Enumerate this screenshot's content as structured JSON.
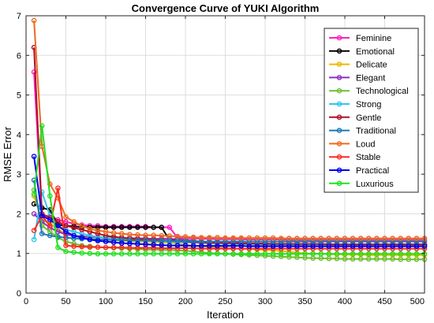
{
  "chart_data": {
    "type": "line",
    "title": "Convergence Curve of YUKI Algorithm",
    "xlabel": "Iteration",
    "ylabel": "RMSE Error",
    "xlim": [
      0,
      500
    ],
    "ylim": [
      0,
      7
    ],
    "xticks": [
      0,
      50,
      100,
      150,
      200,
      250,
      300,
      350,
      400,
      450,
      500
    ],
    "yticks": [
      0,
      1,
      2,
      3,
      4,
      5,
      6,
      7
    ],
    "grid": true,
    "legend_position": "top-right",
    "x": [
      10,
      20,
      30,
      40,
      50,
      60,
      70,
      80,
      90,
      100,
      110,
      120,
      130,
      140,
      150,
      160,
      170,
      180,
      190,
      200,
      210,
      220,
      230,
      240,
      250,
      260,
      270,
      280,
      290,
      300,
      310,
      320,
      330,
      340,
      350,
      360,
      370,
      380,
      390,
      400,
      410,
      420,
      430,
      440,
      450,
      460,
      470,
      480,
      490,
      500
    ],
    "series": [
      {
        "name": "Feminine",
        "color": "#ff1fbf",
        "values": [
          5.58,
          1.95,
          1.95,
          1.85,
          1.8,
          1.75,
          1.72,
          1.7,
          1.7,
          1.68,
          1.68,
          1.68,
          1.68,
          1.68,
          1.68,
          1.66,
          1.66,
          1.66,
          1.4,
          1.38,
          1.38,
          1.37,
          1.37,
          1.36,
          1.36,
          1.36,
          1.36,
          1.35,
          1.35,
          1.35,
          1.35,
          1.35,
          1.34,
          1.34,
          1.34,
          1.34,
          1.34,
          1.34,
          1.34,
          1.34,
          1.34,
          1.34,
          1.34,
          1.34,
          1.34,
          1.34,
          1.34,
          1.34,
          1.34,
          1.34
        ]
      },
      {
        "name": "Emotional",
        "color": "#000000",
        "values": [
          2.25,
          2.15,
          2.1,
          1.72,
          1.7,
          1.68,
          1.67,
          1.66,
          1.66,
          1.66,
          1.66,
          1.66,
          1.66,
          1.66,
          1.66,
          1.66,
          1.66,
          1.34,
          1.33,
          1.3,
          1.28,
          1.28,
          1.27,
          1.27,
          1.26,
          1.26,
          1.26,
          1.25,
          1.25,
          1.25,
          1.24,
          1.24,
          1.24,
          1.23,
          1.23,
          1.23,
          1.23,
          1.23,
          1.22,
          1.22,
          1.22,
          1.22,
          1.22,
          1.22,
          1.21,
          1.21,
          1.21,
          1.21,
          1.21,
          1.21
        ]
      },
      {
        "name": "Delicate",
        "color": "#f2b600",
        "values": [
          2.45,
          1.85,
          1.75,
          1.6,
          1.5,
          1.45,
          1.4,
          1.38,
          1.36,
          1.34,
          1.33,
          1.32,
          1.31,
          1.3,
          1.3,
          1.29,
          1.28,
          1.27,
          1.25,
          1.22,
          1.2,
          1.18,
          1.16,
          1.15,
          1.14,
          1.13,
          1.12,
          1.11,
          1.1,
          1.09,
          1.08,
          1.06,
          1.04,
          1.02,
          1.0,
          1.0,
          0.99,
          0.98,
          0.98,
          0.97,
          0.97,
          0.97,
          0.96,
          0.96,
          0.96,
          0.96,
          0.96,
          0.96,
          0.96,
          0.96
        ]
      },
      {
        "name": "Elegant",
        "color": "#8e2fbf",
        "values": [
          2.0,
          1.8,
          1.65,
          1.55,
          1.48,
          1.45,
          1.43,
          1.42,
          1.41,
          1.4,
          1.4,
          1.39,
          1.39,
          1.38,
          1.38,
          1.37,
          1.37,
          1.37,
          1.36,
          1.34,
          1.32,
          1.3,
          1.28,
          1.27,
          1.26,
          1.25,
          1.24,
          1.23,
          1.22,
          1.22,
          1.21,
          1.21,
          1.2,
          1.2,
          1.2,
          1.2,
          1.2,
          1.19,
          1.19,
          1.19,
          1.19,
          1.19,
          1.19,
          1.19,
          1.19,
          1.19,
          1.19,
          1.19,
          1.19,
          1.19
        ]
      },
      {
        "name": "Technological",
        "color": "#6fbf2f",
        "values": [
          2.6,
          1.7,
          1.55,
          1.4,
          1.3,
          1.25,
          1.2,
          1.18,
          1.16,
          1.15,
          1.14,
          1.13,
          1.12,
          1.11,
          1.1,
          1.1,
          1.09,
          1.09,
          1.08,
          1.07,
          1.05,
          1.03,
          1.01,
          1.0,
          0.99,
          0.98,
          0.97,
          0.96,
          0.95,
          0.94,
          0.93,
          0.92,
          0.91,
          0.9,
          0.89,
          0.88,
          0.88,
          0.87,
          0.87,
          0.86,
          0.86,
          0.86,
          0.86,
          0.86,
          0.86,
          0.86,
          0.85,
          0.85,
          0.85,
          0.85
        ]
      },
      {
        "name": "Strong",
        "color": "#33c6ec",
        "values": [
          1.35,
          2.55,
          1.95,
          1.7,
          1.6,
          1.55,
          1.5,
          1.45,
          1.42,
          1.4,
          1.38,
          1.36,
          1.35,
          1.34,
          1.33,
          1.32,
          1.31,
          1.3,
          1.29,
          1.28,
          1.27,
          1.26,
          1.25,
          1.25,
          1.24,
          1.24,
          1.23,
          1.23,
          1.23,
          1.22,
          1.22,
          1.22,
          1.22,
          1.21,
          1.21,
          1.21,
          1.21,
          1.21,
          1.21,
          1.21,
          1.21,
          1.21,
          1.21,
          1.21,
          1.21,
          1.21,
          1.21,
          1.21,
          1.21,
          1.21
        ]
      },
      {
        "name": "Gentle",
        "color": "#b30f26",
        "values": [
          6.2,
          2.0,
          1.9,
          1.8,
          1.7,
          1.65,
          1.6,
          1.55,
          1.5,
          1.45,
          1.42,
          1.4,
          1.38,
          1.36,
          1.35,
          1.34,
          1.33,
          1.32,
          1.31,
          1.3,
          1.29,
          1.28,
          1.27,
          1.27,
          1.26,
          1.26,
          1.25,
          1.25,
          1.25,
          1.24,
          1.24,
          1.24,
          1.24,
          1.24,
          1.24,
          1.24,
          1.24,
          1.23,
          1.23,
          1.23,
          1.23,
          1.23,
          1.23,
          1.23,
          1.23,
          1.23,
          1.23,
          1.23,
          1.23,
          1.23
        ]
      },
      {
        "name": "Traditional",
        "color": "#1f77b4",
        "values": [
          2.85,
          1.5,
          1.45,
          1.42,
          1.4,
          1.38,
          1.37,
          1.36,
          1.35,
          1.35,
          1.34,
          1.34,
          1.33,
          1.33,
          1.33,
          1.32,
          1.32,
          1.32,
          1.31,
          1.31,
          1.31,
          1.3,
          1.3,
          1.3,
          1.3,
          1.3,
          1.3,
          1.3,
          1.3,
          1.3,
          1.3,
          1.3,
          1.3,
          1.3,
          1.3,
          1.3,
          1.3,
          1.3,
          1.3,
          1.3,
          1.3,
          1.3,
          1.3,
          1.3,
          1.3,
          1.3,
          1.3,
          1.3,
          1.3,
          1.3
        ]
      },
      {
        "name": "Loud",
        "color": "#ec6b1f",
        "values": [
          6.88,
          3.7,
          2.75,
          2.4,
          1.92,
          1.8,
          1.7,
          1.62,
          1.58,
          1.55,
          1.52,
          1.5,
          1.48,
          1.47,
          1.46,
          1.46,
          1.45,
          1.44,
          1.43,
          1.42,
          1.41,
          1.4,
          1.4,
          1.4,
          1.39,
          1.39,
          1.39,
          1.39,
          1.39,
          1.39,
          1.39,
          1.38,
          1.38,
          1.38,
          1.38,
          1.38,
          1.38,
          1.38,
          1.38,
          1.38,
          1.38,
          1.38,
          1.38,
          1.38,
          1.38,
          1.38,
          1.38,
          1.38,
          1.38,
          1.38
        ]
      },
      {
        "name": "Stable",
        "color": "#ff2a1f",
        "values": [
          1.58,
          1.95,
          1.7,
          2.65,
          1.2,
          1.18,
          1.17,
          1.16,
          1.16,
          1.15,
          1.15,
          1.15,
          1.14,
          1.14,
          1.14,
          1.14,
          1.13,
          1.13,
          1.13,
          1.13,
          1.13,
          1.12,
          1.12,
          1.12,
          1.12,
          1.12,
          1.12,
          1.12,
          1.12,
          1.12,
          1.12,
          1.12,
          1.12,
          1.12,
          1.12,
          1.12,
          1.12,
          1.12,
          1.12,
          1.12,
          1.12,
          1.12,
          1.12,
          1.12,
          1.12,
          1.12,
          1.12,
          1.12,
          1.12,
          1.12
        ]
      },
      {
        "name": "Practical",
        "color": "#0000ee",
        "values": [
          3.45,
          1.95,
          1.85,
          1.7,
          1.55,
          1.45,
          1.4,
          1.35,
          1.32,
          1.3,
          1.28,
          1.26,
          1.25,
          1.24,
          1.23,
          1.22,
          1.21,
          1.2,
          1.2,
          1.2,
          1.19,
          1.19,
          1.19,
          1.19,
          1.19,
          1.19,
          1.19,
          1.18,
          1.18,
          1.18,
          1.18,
          1.18,
          1.18,
          1.18,
          1.18,
          1.18,
          1.18,
          1.18,
          1.18,
          1.18,
          1.18,
          1.18,
          1.18,
          1.18,
          1.18,
          1.18,
          1.18,
          1.18,
          1.18,
          1.18
        ]
      },
      {
        "name": "Luxurious",
        "color": "#22e022",
        "values": [
          2.5,
          4.22,
          2.45,
          1.15,
          1.05,
          1.03,
          1.01,
          1.0,
          0.99,
          0.99,
          0.99,
          0.99,
          0.99,
          0.99,
          0.99,
          0.99,
          0.99,
          0.99,
          0.99,
          0.99,
          0.99,
          0.99,
          0.99,
          0.99,
          0.99,
          0.99,
          0.99,
          0.99,
          0.99,
          0.99,
          0.99,
          0.99,
          0.99,
          0.99,
          0.99,
          0.99,
          0.99,
          0.99,
          0.99,
          0.99,
          0.99,
          0.99,
          0.99,
          0.99,
          0.99,
          0.99,
          0.99,
          0.99,
          0.99,
          0.99
        ]
      }
    ]
  }
}
